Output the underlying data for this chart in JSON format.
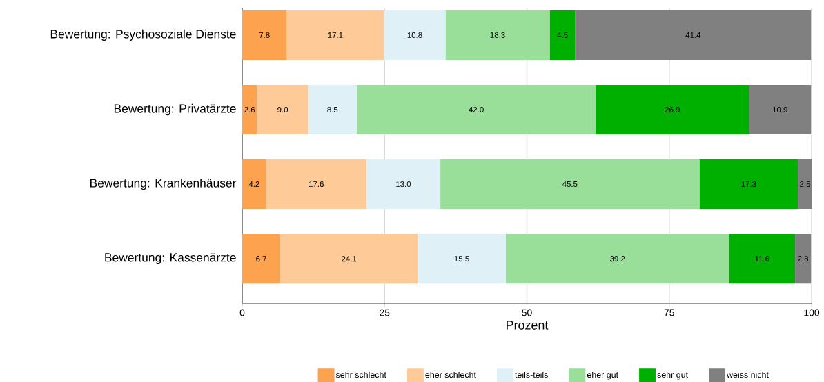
{
  "chart_data": {
    "type": "bar",
    "orientation": "horizontal",
    "stacked": true,
    "categories": [
      "Bewertung: Psychosoziale Dienste",
      "Bewertung: Privatärzte",
      "Bewertung: Krankenhäuser",
      "Bewertung: Kassenärzte"
    ],
    "series": [
      {
        "name": "sehr schlecht",
        "color": "#fda24f",
        "values": [
          7.8,
          2.6,
          4.2,
          6.7
        ],
        "value_labels": [
          "7.8",
          "2.6",
          "4.2",
          "6.7"
        ]
      },
      {
        "name": "eher schlecht",
        "color": "#fecb98",
        "values": [
          17.1,
          9.0,
          17.6,
          24.1
        ],
        "value_labels": [
          "17.1",
          "9.0",
          "17.6",
          "24.1"
        ]
      },
      {
        "name": "teils-teils",
        "color": "#dff0f7",
        "values": [
          10.8,
          8.5,
          13.0,
          15.5
        ],
        "value_labels": [
          "10.8",
          "8.5",
          "13.0",
          "15.5"
        ]
      },
      {
        "name": "eher gut",
        "color": "#99de99",
        "values": [
          18.3,
          42.0,
          45.5,
          39.2
        ],
        "value_labels": [
          "18.3",
          "42.0",
          "45.5",
          "39.2"
        ]
      },
      {
        "name": "sehr gut",
        "color": "#00b000",
        "values": [
          4.5,
          26.9,
          17.3,
          11.6
        ],
        "value_labels": [
          "4.5",
          "26.9",
          "17.3",
          "11.6"
        ]
      },
      {
        "name": "weiss nicht",
        "color": "#808080",
        "values": [
          41.4,
          10.9,
          2.5,
          2.8
        ],
        "value_labels": [
          "41.4",
          "10.9",
          "2.5",
          "2.8"
        ]
      }
    ],
    "xlim": [
      0,
      100
    ],
    "xticks": [
      0,
      25,
      50,
      75,
      100
    ],
    "xlabel": "Prozent",
    "grid": "x",
    "legend": "bottom"
  }
}
